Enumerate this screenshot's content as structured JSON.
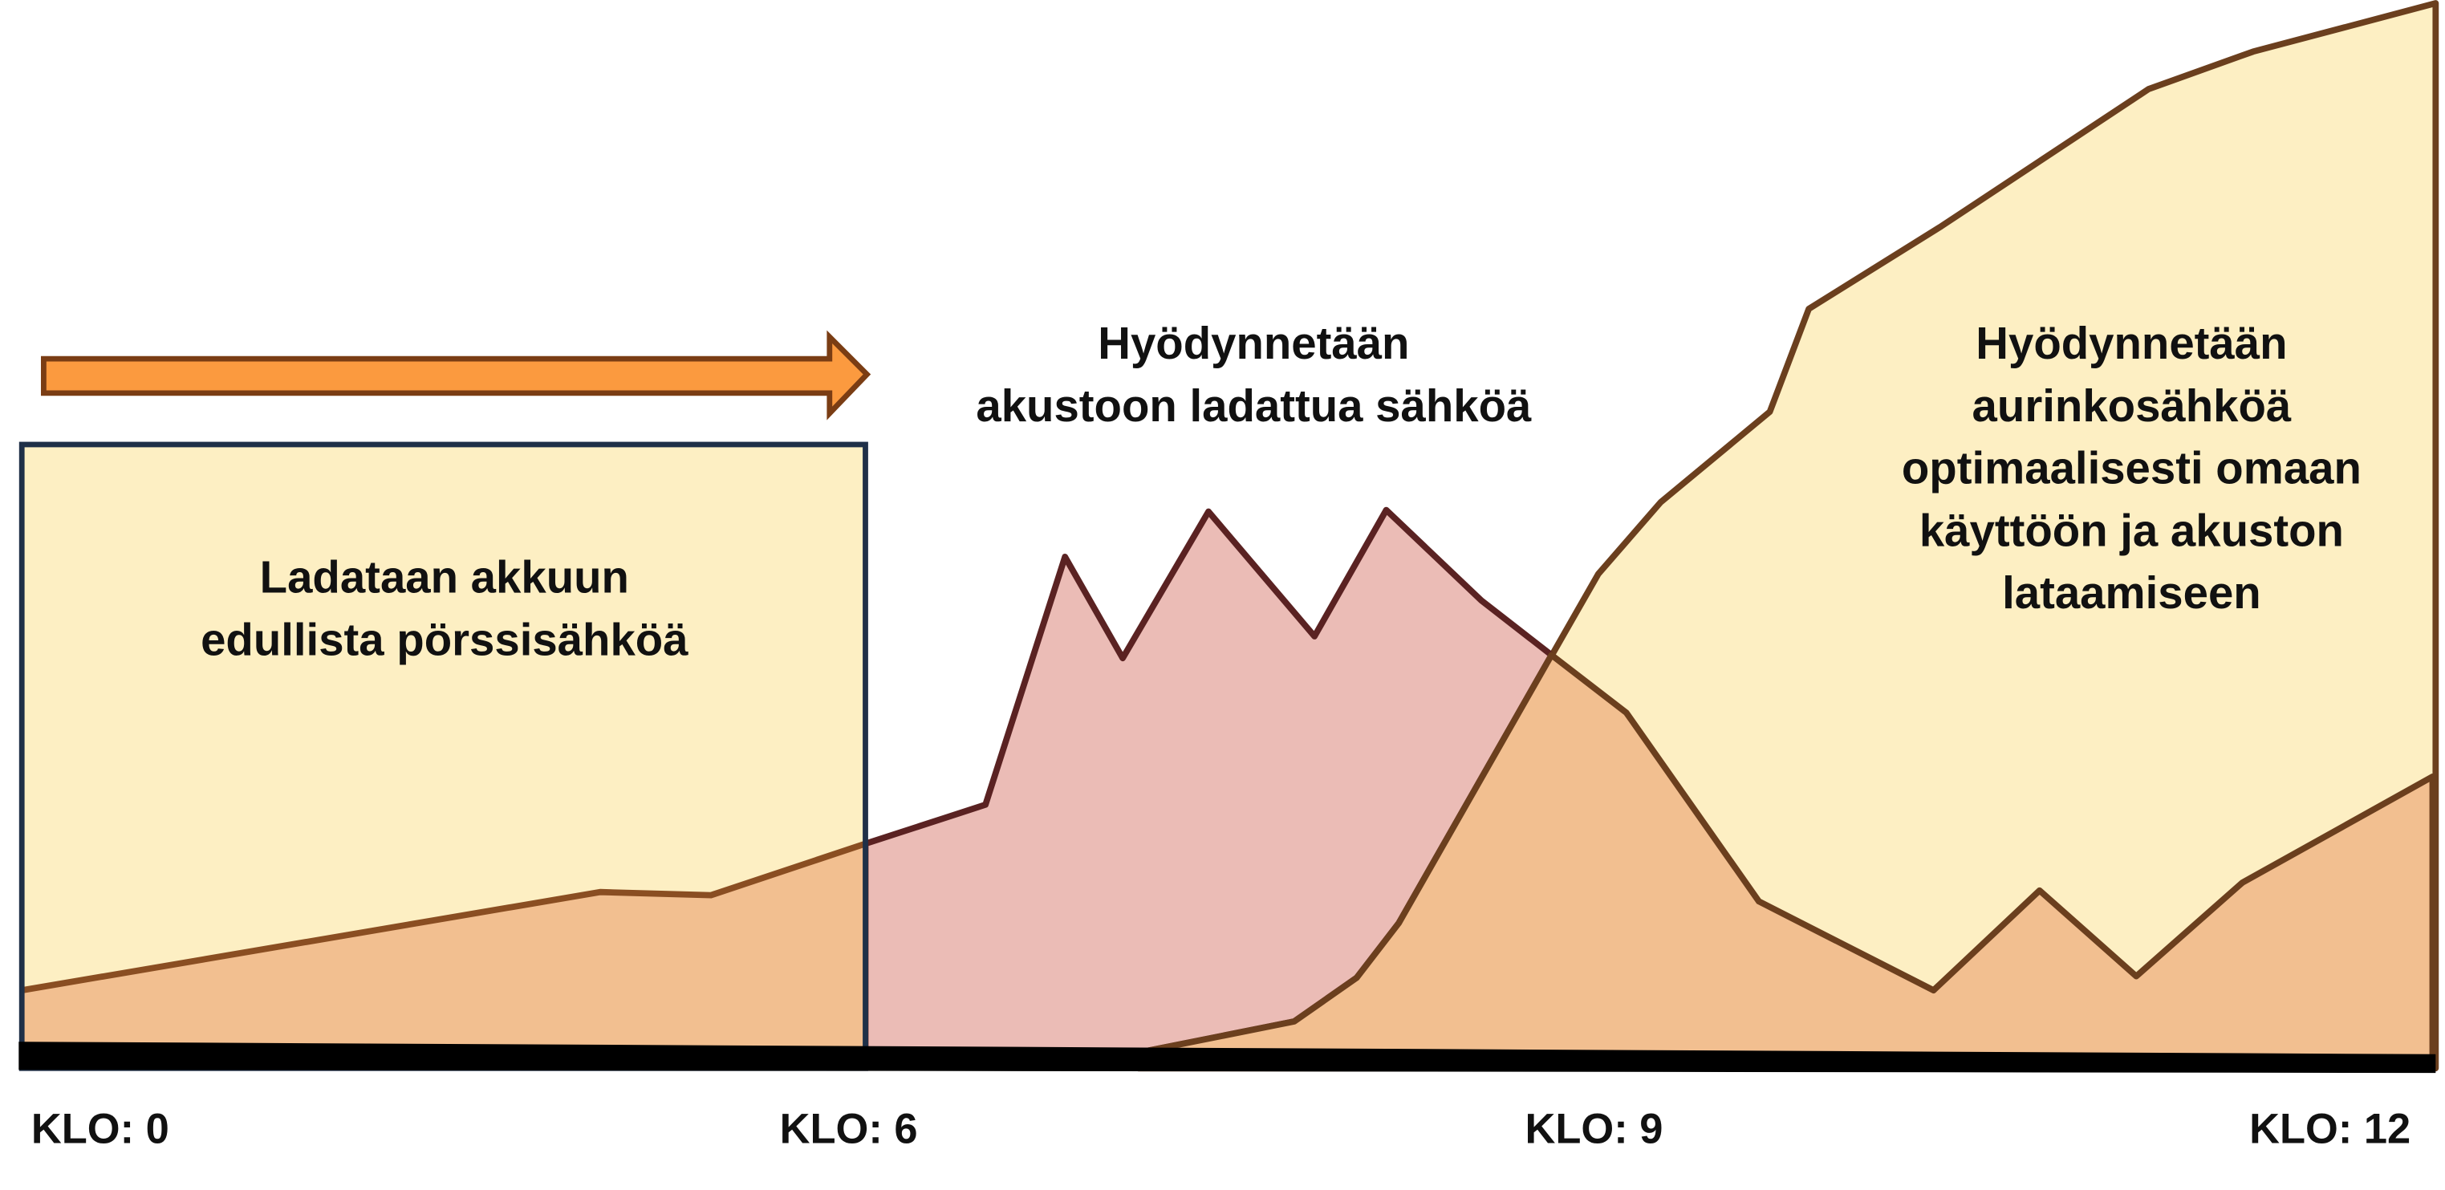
{
  "battery_text": [
    "Hyödynnetään",
    "akustoon ladattua sähköä"
  ],
  "solar_text": [
    "Hyödynnetään",
    "aurinkosähköä",
    "optimaalisesti omaan",
    "käyttöön ja akuston",
    "lataamiseen"
  ],
  "charge_text": [
    "Ladataan akkuun",
    "edullista pörssisähköä"
  ],
  "time_labels": [
    "KLO: 0",
    "KLO: 6",
    "KLO: 9",
    "KLO: 12"
  ]
}
